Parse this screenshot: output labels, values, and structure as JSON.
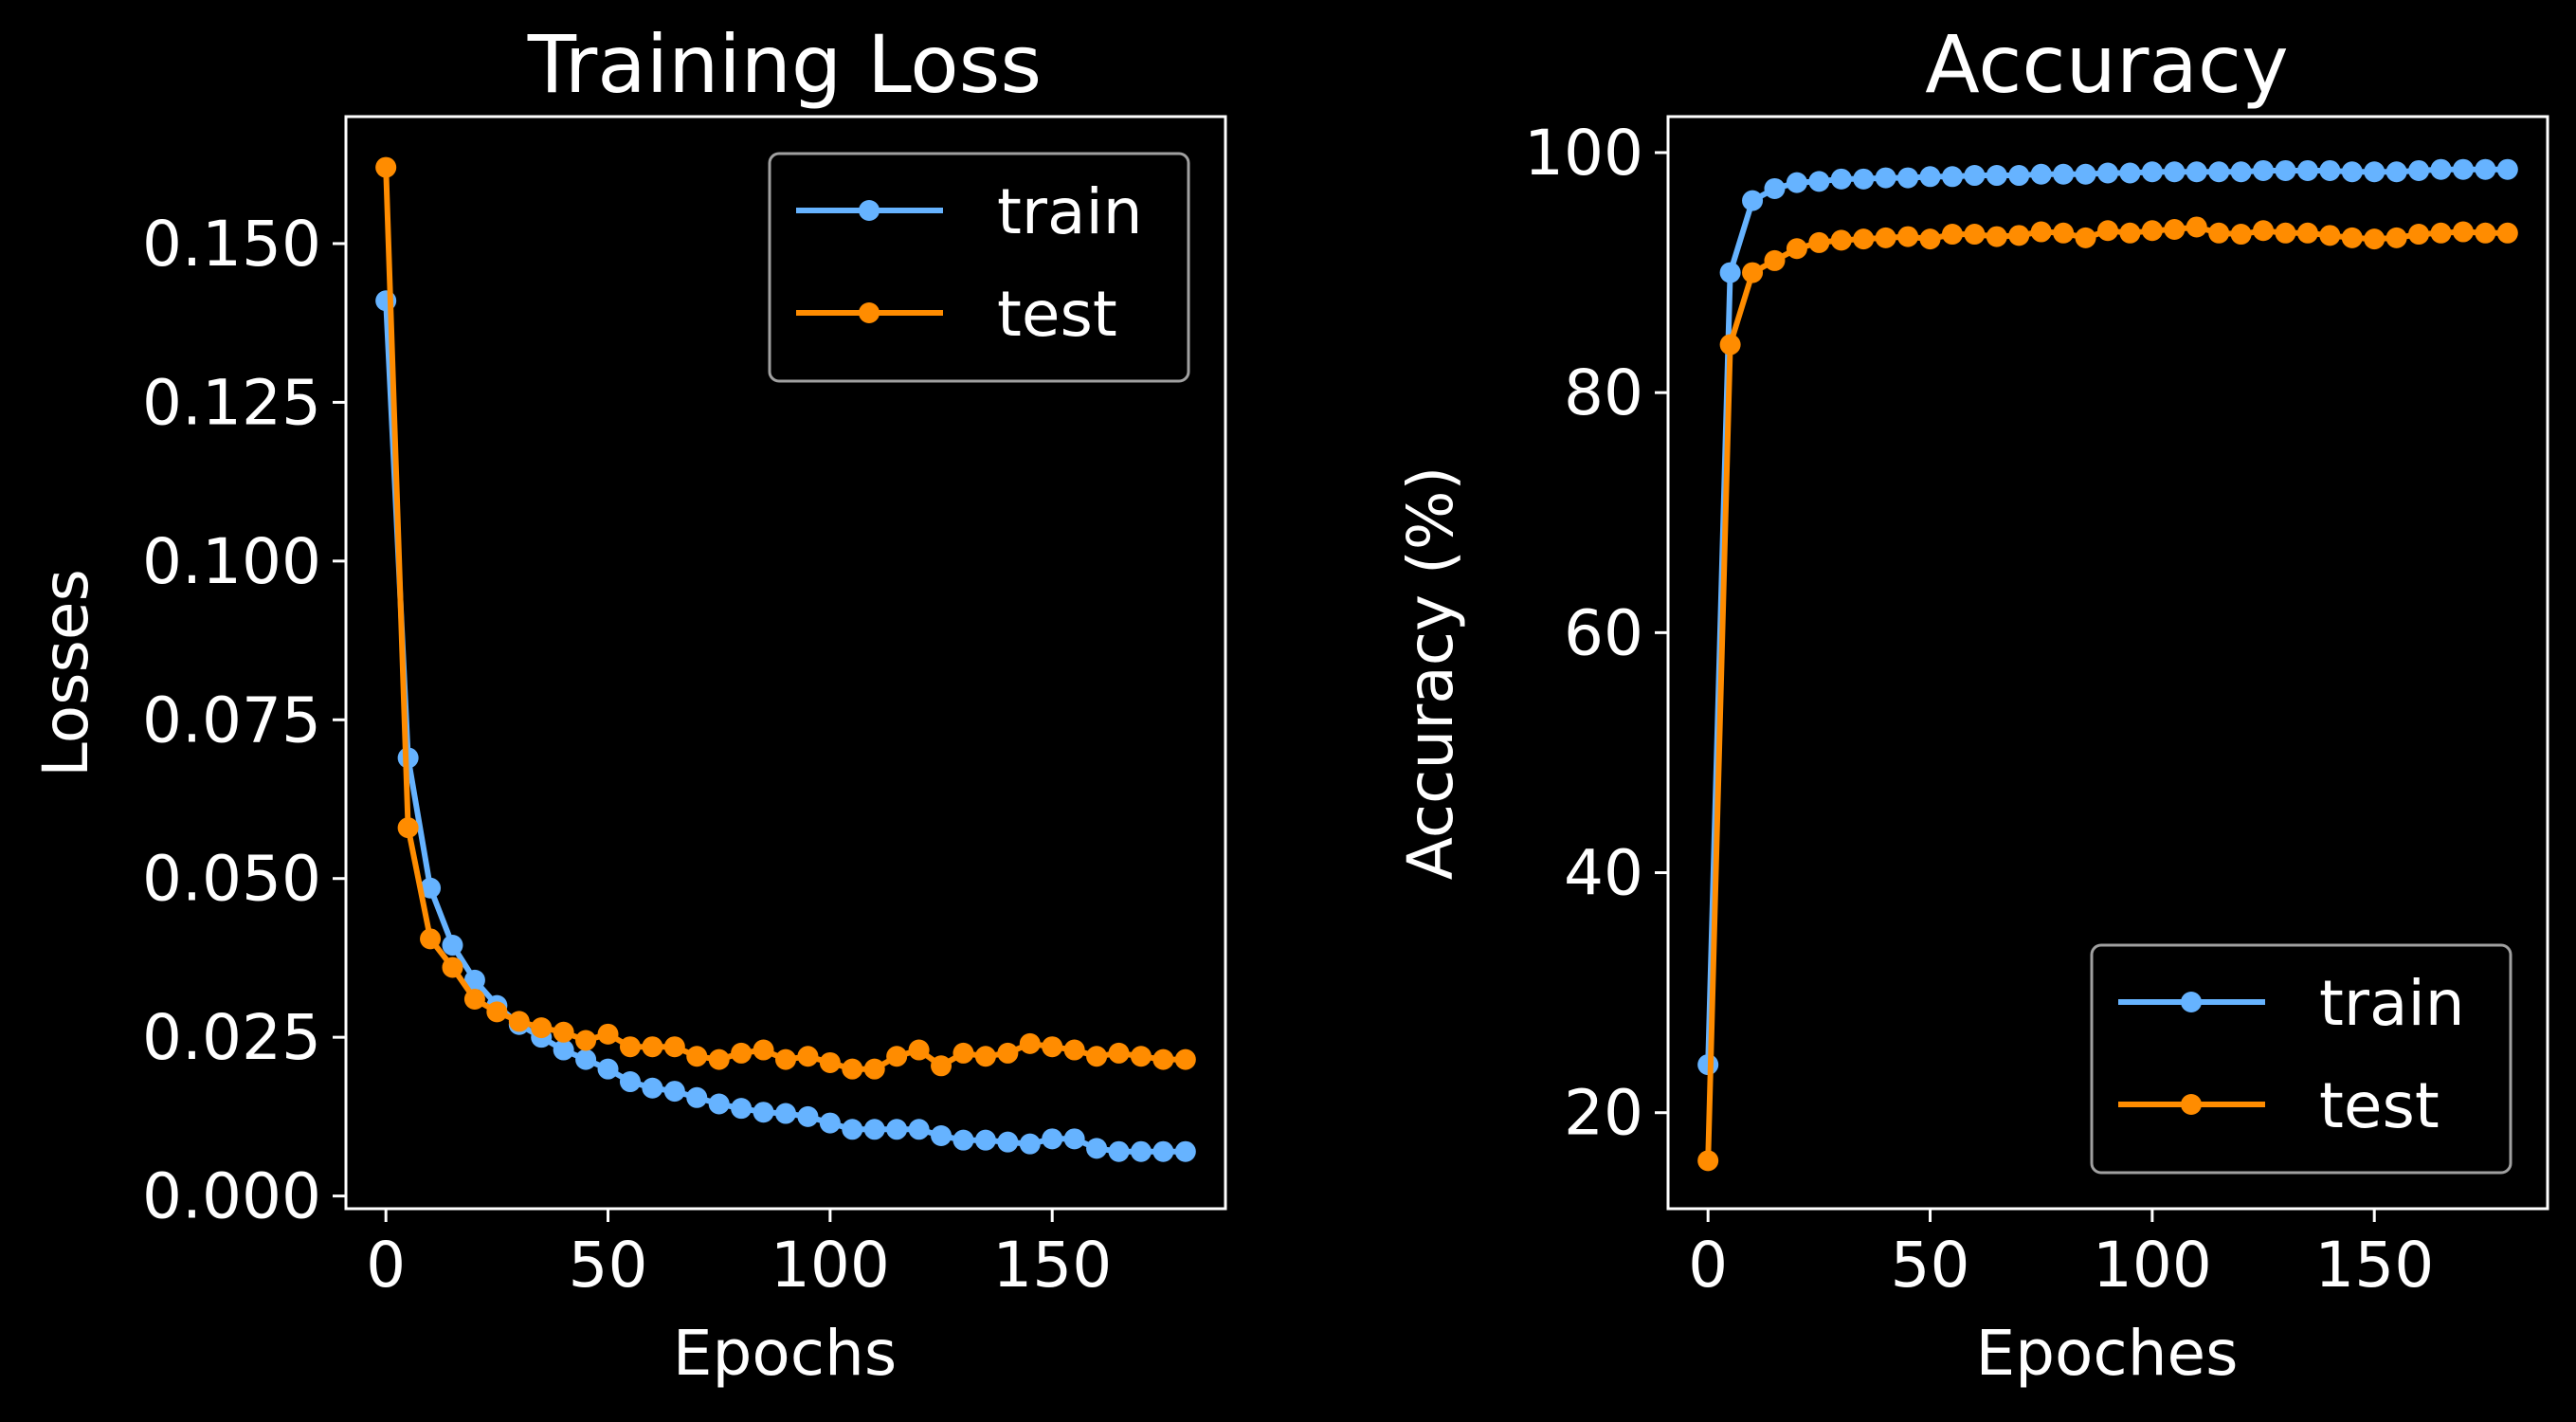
{
  "colors": {
    "background": "#000000",
    "foreground": "#ffffff",
    "train": "#66b3ff",
    "test": "#ff8c00",
    "legend_border": "#a0a0a0"
  },
  "chart_data": [
    {
      "type": "line",
      "title": "Training Loss",
      "xlabel": "Epochs",
      "ylabel": "Losses",
      "xlim": [
        -9,
        189
      ],
      "ylim": [
        -0.002,
        0.17
      ],
      "xticks": [
        0,
        50,
        100,
        150
      ],
      "xtick_labels": [
        "0",
        "50",
        "100",
        "150"
      ],
      "yticks": [
        0.0,
        0.025,
        0.05,
        0.075,
        0.1,
        0.125,
        0.15
      ],
      "ytick_labels": [
        "0.000",
        "0.025",
        "0.050",
        "0.075",
        "0.100",
        "0.125",
        "0.150"
      ],
      "grid": false,
      "legend": "top-right",
      "x": [
        0,
        5,
        10,
        15,
        20,
        25,
        30,
        35,
        40,
        45,
        50,
        55,
        60,
        65,
        70,
        75,
        80,
        85,
        90,
        95,
        100,
        105,
        110,
        115,
        120,
        125,
        130,
        135,
        140,
        145,
        150,
        155,
        160,
        165,
        170,
        175,
        180
      ],
      "series": [
        {
          "name": "train",
          "color": "#66b3ff",
          "values": [
            0.141,
            0.069,
            0.0485,
            0.0395,
            0.034,
            0.03,
            0.027,
            0.025,
            0.023,
            0.0215,
            0.02,
            0.018,
            0.017,
            0.0165,
            0.0155,
            0.0145,
            0.0138,
            0.0132,
            0.013,
            0.0125,
            0.0115,
            0.0105,
            0.0105,
            0.0105,
            0.0105,
            0.0095,
            0.0088,
            0.0088,
            0.0085,
            0.0082,
            0.009,
            0.009,
            0.0075,
            0.007,
            0.007,
            0.007,
            0.007
          ]
        },
        {
          "name": "test",
          "color": "#ff8c00",
          "values": [
            0.162,
            0.058,
            0.0405,
            0.036,
            0.031,
            0.029,
            0.0275,
            0.0265,
            0.0258,
            0.0245,
            0.0255,
            0.0235,
            0.0235,
            0.0235,
            0.022,
            0.0215,
            0.0225,
            0.023,
            0.0215,
            0.022,
            0.021,
            0.02,
            0.02,
            0.022,
            0.023,
            0.0205,
            0.0225,
            0.022,
            0.0225,
            0.024,
            0.0235,
            0.023,
            0.022,
            0.0225,
            0.022,
            0.0215,
            0.0215
          ]
        }
      ]
    },
    {
      "type": "line",
      "title": "Accuracy",
      "xlabel": "Epoches",
      "ylabel": "Accuracy (%)",
      "xlim": [
        -9,
        189
      ],
      "ylim": [
        12,
        103
      ],
      "xticks": [
        0,
        50,
        100,
        150
      ],
      "xtick_labels": [
        "0",
        "50",
        "100",
        "150"
      ],
      "yticks": [
        20,
        40,
        60,
        80,
        100
      ],
      "ytick_labels": [
        "20",
        "40",
        "60",
        "80",
        "100"
      ],
      "grid": false,
      "legend": "bottom-right",
      "x": [
        0,
        5,
        10,
        15,
        20,
        25,
        30,
        35,
        40,
        45,
        50,
        55,
        60,
        65,
        70,
        75,
        80,
        85,
        90,
        95,
        100,
        105,
        110,
        115,
        120,
        125,
        130,
        135,
        140,
        145,
        150,
        155,
        160,
        165,
        170,
        175,
        180
      ],
      "series": [
        {
          "name": "train",
          "color": "#66b3ff",
          "values": [
            24.0,
            90.0,
            96.0,
            97.0,
            97.5,
            97.6,
            97.8,
            97.8,
            97.9,
            97.9,
            98.0,
            98.0,
            98.1,
            98.1,
            98.1,
            98.2,
            98.2,
            98.2,
            98.3,
            98.3,
            98.4,
            98.4,
            98.4,
            98.4,
            98.4,
            98.5,
            98.5,
            98.5,
            98.5,
            98.4,
            98.4,
            98.4,
            98.5,
            98.6,
            98.6,
            98.6,
            98.6
          ]
        },
        {
          "name": "test",
          "color": "#ff8c00",
          "values": [
            16.0,
            84.0,
            90.0,
            91.0,
            92.0,
            92.5,
            92.7,
            92.8,
            92.9,
            93.0,
            92.8,
            93.2,
            93.2,
            93.0,
            93.1,
            93.4,
            93.3,
            92.9,
            93.5,
            93.3,
            93.5,
            93.6,
            93.8,
            93.3,
            93.2,
            93.5,
            93.3,
            93.3,
            93.1,
            92.9,
            92.8,
            92.9,
            93.2,
            93.3,
            93.4,
            93.3,
            93.3
          ]
        }
      ]
    }
  ]
}
